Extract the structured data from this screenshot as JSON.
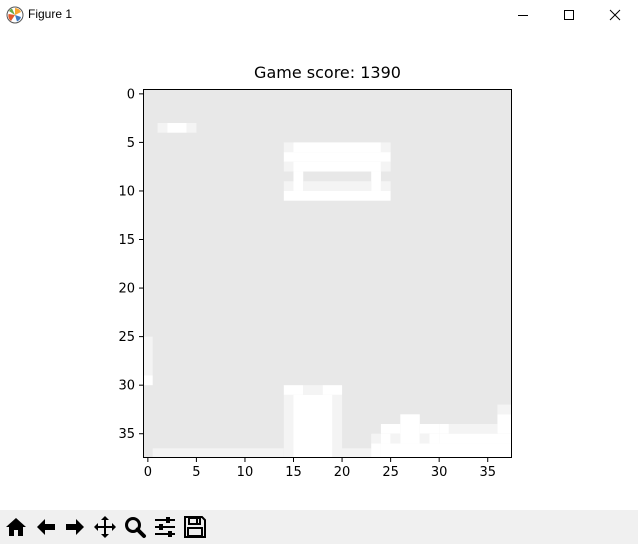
{
  "window": {
    "title": "Figure 1",
    "icons": [
      "matplotlib-logo-icon",
      "minimize-icon",
      "maximize-icon",
      "close-icon"
    ]
  },
  "toolbar": {
    "buttons": [
      {
        "name": "home-icon"
      },
      {
        "name": "back-arrow-icon"
      },
      {
        "name": "forward-arrow-icon"
      },
      {
        "name": "pan-icon"
      },
      {
        "name": "zoom-icon"
      },
      {
        "name": "configure-subplots-icon"
      },
      {
        "name": "save-icon"
      }
    ]
  },
  "chart_data": {
    "type": "heatmap",
    "title": "Game score: 1390",
    "xlim": [
      -0.5,
      37.5
    ],
    "ylim": [
      37.5,
      -0.5
    ],
    "xticks": [
      0,
      5,
      10,
      15,
      20,
      25,
      30,
      35
    ],
    "yticks": [
      0,
      5,
      10,
      15,
      20,
      25,
      30,
      35
    ],
    "grid": false,
    "colors": {
      "background": "#e8e8e8",
      "light": "#f4f4f4",
      "white": "#ffffff"
    },
    "cells": [
      {
        "x0": 1,
        "y0": 3,
        "x1": 2,
        "y1": 4,
        "level": "light"
      },
      {
        "x0": 2,
        "y0": 3,
        "x1": 4,
        "y1": 4,
        "level": "white"
      },
      {
        "x0": 4,
        "y0": 3,
        "x1": 5,
        "y1": 4,
        "level": "light"
      },
      {
        "x0": 14,
        "y0": 5,
        "x1": 15,
        "y1": 6,
        "level": "light"
      },
      {
        "x0": 15,
        "y0": 5,
        "x1": 24,
        "y1": 6,
        "level": "white"
      },
      {
        "x0": 24,
        "y0": 5,
        "x1": 25,
        "y1": 6,
        "level": "light"
      },
      {
        "x0": 14,
        "y0": 6,
        "x1": 25,
        "y1": 7,
        "level": "white"
      },
      {
        "x0": 15,
        "y0": 7,
        "x1": 24,
        "y1": 8,
        "level": "white"
      },
      {
        "x0": 14,
        "y0": 7,
        "x1": 15,
        "y1": 8,
        "level": "light"
      },
      {
        "x0": 24,
        "y0": 7,
        "x1": 25,
        "y1": 8,
        "level": "light"
      },
      {
        "x0": 15,
        "y0": 8,
        "x1": 16,
        "y1": 10,
        "level": "white"
      },
      {
        "x0": 23,
        "y0": 8,
        "x1": 24,
        "y1": 10,
        "level": "white"
      },
      {
        "x0": 14,
        "y0": 9,
        "x1": 15,
        "y1": 10,
        "level": "light"
      },
      {
        "x0": 16,
        "y0": 9,
        "x1": 23,
        "y1": 10,
        "level": "light"
      },
      {
        "x0": 24,
        "y0": 9,
        "x1": 25,
        "y1": 10,
        "level": "light"
      },
      {
        "x0": 14,
        "y0": 10,
        "x1": 25,
        "y1": 11,
        "level": "white"
      },
      {
        "x0": -0.5,
        "y0": 25,
        "x1": 0.5,
        "y1": 29,
        "level": "light"
      },
      {
        "x0": -0.5,
        "y0": 29,
        "x1": 0.5,
        "y1": 30,
        "level": "white"
      },
      {
        "x0": 14,
        "y0": 30,
        "x1": 16,
        "y1": 31,
        "level": "white"
      },
      {
        "x0": 18,
        "y0": 30,
        "x1": 20,
        "y1": 31,
        "level": "white"
      },
      {
        "x0": 16,
        "y0": 30,
        "x1": 18,
        "y1": 31,
        "level": "light"
      },
      {
        "x0": 14,
        "y0": 31,
        "x1": 15,
        "y1": 37.5,
        "level": "light"
      },
      {
        "x0": 15,
        "y0": 31,
        "x1": 19,
        "y1": 37.5,
        "level": "white"
      },
      {
        "x0": 19,
        "y0": 31,
        "x1": 20,
        "y1": 37.5,
        "level": "light"
      },
      {
        "x0": 0.5,
        "y0": 36.5,
        "x1": 14,
        "y1": 37.5,
        "level": "light"
      },
      {
        "x0": 20,
        "y0": 36.5,
        "x1": 23,
        "y1": 37.5,
        "level": "light"
      },
      {
        "x0": 23,
        "y0": 35,
        "x1": 24,
        "y1": 36,
        "level": "light"
      },
      {
        "x0": 23,
        "y0": 36,
        "x1": 24,
        "y1": 37.5,
        "level": "white"
      },
      {
        "x0": 24,
        "y0": 34,
        "x1": 26,
        "y1": 35,
        "level": "white"
      },
      {
        "x0": 24,
        "y0": 35,
        "x1": 25,
        "y1": 36,
        "level": "white"
      },
      {
        "x0": 25,
        "y0": 35,
        "x1": 26,
        "y1": 36,
        "level": "light"
      },
      {
        "x0": 24,
        "y0": 36,
        "x1": 37.5,
        "y1": 37.5,
        "level": "white"
      },
      {
        "x0": 26,
        "y0": 33,
        "x1": 28,
        "y1": 36,
        "level": "white"
      },
      {
        "x0": 28,
        "y0": 34,
        "x1": 30,
        "y1": 35,
        "level": "white"
      },
      {
        "x0": 28,
        "y0": 35,
        "x1": 29,
        "y1": 36,
        "level": "light"
      },
      {
        "x0": 29,
        "y0": 35,
        "x1": 30,
        "y1": 36,
        "level": "white"
      },
      {
        "x0": 30,
        "y0": 34,
        "x1": 31,
        "y1": 35,
        "level": "white"
      },
      {
        "x0": 31,
        "y0": 34,
        "x1": 36,
        "y1": 35,
        "level": "light"
      },
      {
        "x0": 30,
        "y0": 35,
        "x1": 37.5,
        "y1": 36,
        "level": "white"
      },
      {
        "x0": 36,
        "y0": 32,
        "x1": 37.5,
        "y1": 33,
        "level": "light"
      },
      {
        "x0": 36,
        "y0": 33,
        "x1": 37.5,
        "y1": 35,
        "level": "white"
      }
    ]
  }
}
